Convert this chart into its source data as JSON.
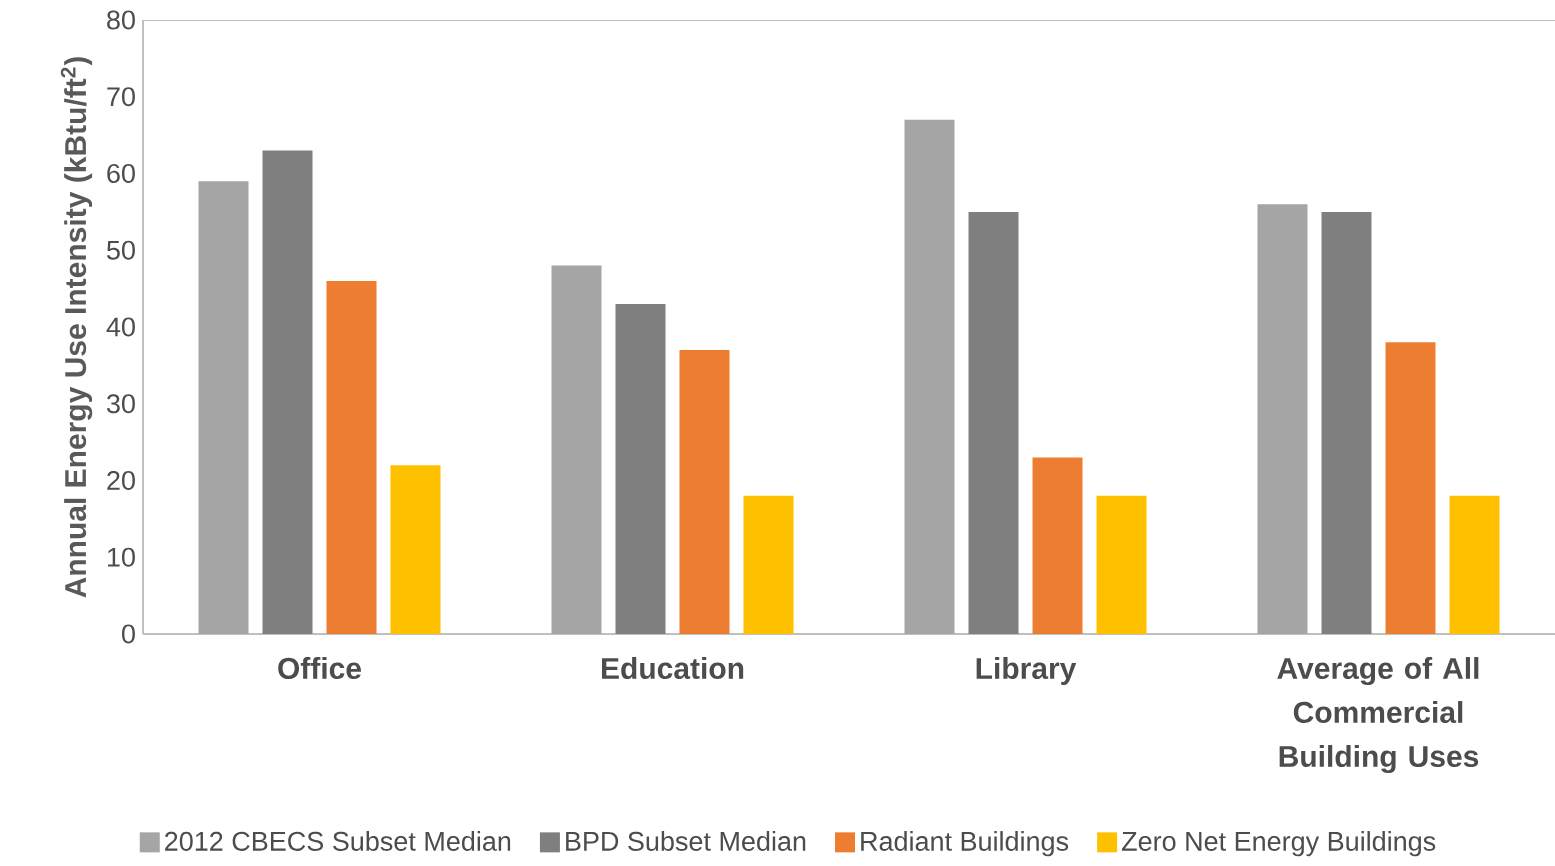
{
  "chart_data": {
    "type": "bar",
    "ylabel": "Annual Energy Use Intensity (kBtu/ft$^{2}$)",
    "categories": [
      "Office",
      "Education",
      "Library",
      "Average of All Commercial Building Uses"
    ],
    "series": [
      {
        "name": "2012 CBECS Subset Median",
        "color": "#a5a5a5",
        "values": [
          59,
          48,
          67,
          56
        ]
      },
      {
        "name": "BPD Subset Median",
        "color": "#7f7f7f",
        "values": [
          63,
          43,
          55,
          55
        ]
      },
      {
        "name": "Radiant Buildings",
        "color": "#ed7d31",
        "values": [
          46,
          37,
          23,
          38
        ]
      },
      {
        "name": "Zero Net Energy Buildings",
        "color": "#ffc000",
        "values": [
          22,
          18,
          18,
          18
        ]
      }
    ],
    "ylim": [
      0,
      80
    ],
    "yticks": [
      0,
      10,
      20,
      30,
      40,
      50,
      60,
      70,
      80
    ],
    "legend": "bottom"
  }
}
